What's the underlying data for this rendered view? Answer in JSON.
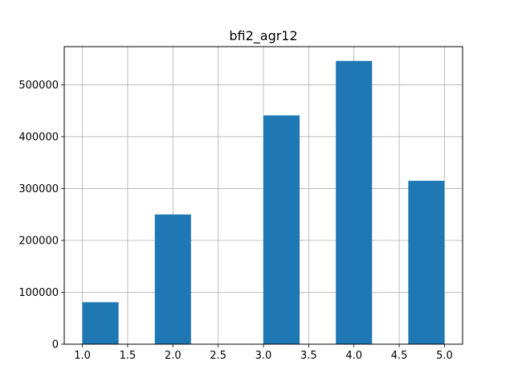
{
  "chart_data": {
    "type": "bar",
    "subtype": "histogram",
    "title": "bfi2_agr12",
    "xlabel": "",
    "ylabel": "",
    "xlim": [
      0.8,
      5.2
    ],
    "ylim": [
      0,
      573500
    ],
    "grid": true,
    "bar_color": "#1f77b4",
    "bins": [
      {
        "x0": 1.0,
        "x1": 1.4,
        "value": 81000
      },
      {
        "x0": 1.4,
        "x1": 1.8,
        "value": 0
      },
      {
        "x0": 1.8,
        "x1": 2.2,
        "value": 250000
      },
      {
        "x0": 2.2,
        "x1": 2.6,
        "value": 0
      },
      {
        "x0": 2.6,
        "x1": 3.0,
        "value": 0
      },
      {
        "x0": 3.0,
        "x1": 3.4,
        "value": 441000
      },
      {
        "x0": 3.4,
        "x1": 3.8,
        "value": 0
      },
      {
        "x0": 3.8,
        "x1": 4.2,
        "value": 546000
      },
      {
        "x0": 4.2,
        "x1": 4.6,
        "value": 0
      },
      {
        "x0": 4.6,
        "x1": 5.0,
        "value": 315000
      }
    ],
    "x_ticks": [
      1.0,
      1.5,
      2.0,
      2.5,
      3.0,
      3.5,
      4.0,
      4.5,
      5.0
    ],
    "x_tick_labels": [
      "1.0",
      "1.5",
      "2.0",
      "2.5",
      "3.0",
      "3.5",
      "4.0",
      "4.5",
      "5.0"
    ],
    "y_ticks": [
      0,
      100000,
      200000,
      300000,
      400000,
      500000
    ],
    "y_tick_labels": [
      "0",
      "100000",
      "200000",
      "300000",
      "400000",
      "500000"
    ]
  }
}
